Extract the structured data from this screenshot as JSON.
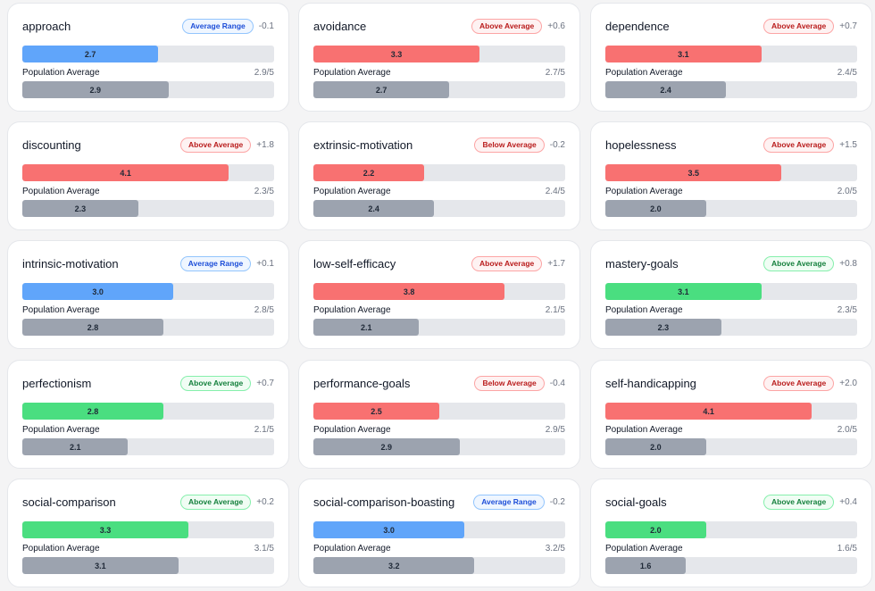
{
  "colors": {
    "blue": "#60a5fa",
    "red": "#f87171",
    "green": "#4ade80",
    "gray": "#9ca3af",
    "track": "#e5e7eb"
  },
  "population_label": "Population Average",
  "cards": [
    {
      "title": "approach",
      "badge": "Average Range",
      "badge_type": "range",
      "delta": "-0.1",
      "score": "2.7",
      "score_value": 2.7,
      "score_color": "blue",
      "pop_text": "2.9/5",
      "pop": "2.9",
      "pop_value": 2.9
    },
    {
      "title": "avoidance",
      "badge": "Above Average",
      "badge_type": "above",
      "delta": "+0.6",
      "score": "3.3",
      "score_value": 3.3,
      "score_color": "red",
      "pop_text": "2.7/5",
      "pop": "2.7",
      "pop_value": 2.7
    },
    {
      "title": "dependence",
      "badge": "Above Average",
      "badge_type": "above",
      "delta": "+0.7",
      "score": "3.1",
      "score_value": 3.1,
      "score_color": "red",
      "pop_text": "2.4/5",
      "pop": "2.4",
      "pop_value": 2.4
    },
    {
      "title": "discounting",
      "badge": "Above Average",
      "badge_type": "above",
      "delta": "+1.8",
      "score": "4.1",
      "score_value": 4.1,
      "score_color": "red",
      "pop_text": "2.3/5",
      "pop": "2.3",
      "pop_value": 2.3
    },
    {
      "title": "extrinsic-motivation",
      "badge": "Below Average",
      "badge_type": "below",
      "delta": "-0.2",
      "score": "2.2",
      "score_value": 2.2,
      "score_color": "red",
      "pop_text": "2.4/5",
      "pop": "2.4",
      "pop_value": 2.4
    },
    {
      "title": "hopelessness",
      "badge": "Above Average",
      "badge_type": "above",
      "delta": "+1.5",
      "score": "3.5",
      "score_value": 3.5,
      "score_color": "red",
      "pop_text": "2.0/5",
      "pop": "2.0",
      "pop_value": 2.0
    },
    {
      "title": "intrinsic-motivation",
      "badge": "Average Range",
      "badge_type": "range",
      "delta": "+0.1",
      "score": "3.0",
      "score_value": 3.0,
      "score_color": "blue",
      "pop_text": "2.8/5",
      "pop": "2.8",
      "pop_value": 2.8
    },
    {
      "title": "low-self-efficacy",
      "badge": "Above Average",
      "badge_type": "above",
      "delta": "+1.7",
      "score": "3.8",
      "score_value": 3.8,
      "score_color": "red",
      "pop_text": "2.1/5",
      "pop": "2.1",
      "pop_value": 2.1
    },
    {
      "title": "mastery-goals",
      "badge": "Above Average",
      "badge_type": "good",
      "delta": "+0.8",
      "score": "3.1",
      "score_value": 3.1,
      "score_color": "green",
      "pop_text": "2.3/5",
      "pop": "2.3",
      "pop_value": 2.3
    },
    {
      "title": "perfectionism",
      "badge": "Above Average",
      "badge_type": "good",
      "delta": "+0.7",
      "score": "2.8",
      "score_value": 2.8,
      "score_color": "green",
      "pop_text": "2.1/5",
      "pop": "2.1",
      "pop_value": 2.1
    },
    {
      "title": "performance-goals",
      "badge": "Below Average",
      "badge_type": "below",
      "delta": "-0.4",
      "score": "2.5",
      "score_value": 2.5,
      "score_color": "red",
      "pop_text": "2.9/5",
      "pop": "2.9",
      "pop_value": 2.9
    },
    {
      "title": "self-handicapping",
      "badge": "Above Average",
      "badge_type": "above",
      "delta": "+2.0",
      "score": "4.1",
      "score_value": 4.1,
      "score_color": "red",
      "pop_text": "2.0/5",
      "pop": "2.0",
      "pop_value": 2.0
    },
    {
      "title": "social-comparison",
      "badge": "Above Average",
      "badge_type": "good",
      "delta": "+0.2",
      "score": "3.3",
      "score_value": 3.3,
      "score_color": "green",
      "pop_text": "3.1/5",
      "pop": "3.1",
      "pop_value": 3.1
    },
    {
      "title": "social-comparison-boasting",
      "badge": "Average Range",
      "badge_type": "range",
      "delta": "-0.2",
      "score": "3.0",
      "score_value": 3.0,
      "score_color": "blue",
      "pop_text": "3.2/5",
      "pop": "3.2",
      "pop_value": 3.2
    },
    {
      "title": "social-goals",
      "badge": "Above Average",
      "badge_type": "good",
      "delta": "+0.4",
      "score": "2.0",
      "score_value": 2.0,
      "score_color": "green",
      "pop_text": "1.6/5",
      "pop": "1.6",
      "pop_value": 1.6
    }
  ]
}
